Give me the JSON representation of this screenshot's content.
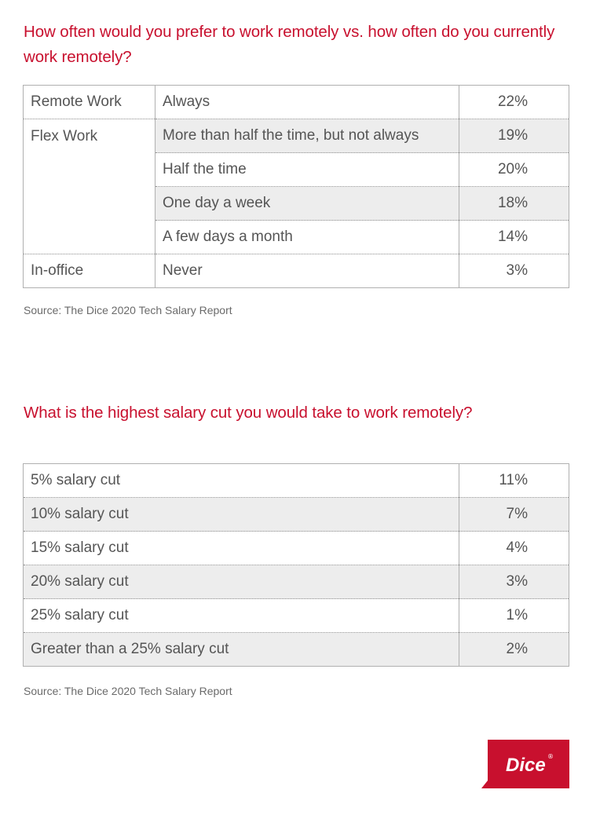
{
  "table1": {
    "title": "How often would you prefer to work remotely vs. how often do you currently work remotely?",
    "rows": [
      {
        "category": "Remote Work",
        "option": "Always",
        "percent": "22%"
      },
      {
        "category": "Flex Work",
        "option": "More than half the time, but not always",
        "percent": "19%"
      },
      {
        "category": "",
        "option": "Half the time",
        "percent": "20%"
      },
      {
        "category": "",
        "option": "One day a week",
        "percent": "18%"
      },
      {
        "category": "",
        "option": "A few days a month",
        "percent": "14%"
      },
      {
        "category": "In-office",
        "option": "Never",
        "percent": "3%"
      }
    ],
    "source": "Source: The Dice 2020 Tech Salary Report"
  },
  "table2": {
    "title": "What is the highest salary cut you would take to work remotely?",
    "rows": [
      {
        "option": "5% salary cut",
        "percent": "11%"
      },
      {
        "option": "10% salary cut",
        "percent": "7%"
      },
      {
        "option": "15% salary cut",
        "percent": "4%"
      },
      {
        "option": "20% salary cut",
        "percent": "3%"
      },
      {
        "option": "25% salary cut",
        "percent": "1%"
      },
      {
        "option": "Greater than a 25% salary cut",
        "percent": "2%"
      }
    ],
    "source": "Source: The Dice 2020 Tech Salary Report"
  },
  "logo": {
    "text": "Dice",
    "mark": "®",
    "color": "#c8102e"
  }
}
